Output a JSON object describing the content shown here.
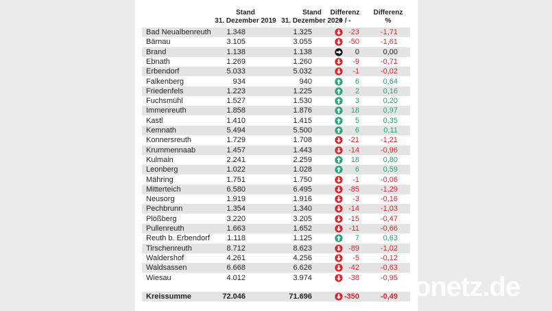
{
  "table": {
    "header": [
      [
        "Stand",
        "31. Dezember 2019"
      ],
      [
        "Stand",
        "31. Dezember 2020"
      ],
      [
        "Differenz",
        "+ / -"
      ],
      [
        "Differenz",
        "%"
      ]
    ],
    "rows": [
      [
        "Bad Neualbenreuth",
        "1.348",
        "1.325",
        "-23",
        "-1,71"
      ],
      [
        "Bärnau",
        "3.105",
        "3.055",
        "-50",
        "-1,61"
      ],
      [
        "Brand",
        "1.138",
        "1.138",
        "0",
        "0,00"
      ],
      [
        "Ebnath",
        "1.269",
        "1.260",
        "-9",
        "-0,71"
      ],
      [
        "Erbendorf",
        "5.033",
        "5.032",
        "-1",
        "-0,02"
      ],
      [
        "Falkenberg",
        "934",
        "940",
        "6",
        "0,64"
      ],
      [
        "Friedenfels",
        "1.223",
        "1.225",
        "2",
        "0,16"
      ],
      [
        "Fuchsmühl",
        "1.527",
        "1.530",
        "3",
        "0,20"
      ],
      [
        "Immenreuth",
        "1.858",
        "1.876",
        "18",
        "0,97"
      ],
      [
        "Kastl",
        "1.410",
        "1.415",
        "5",
        "0,35"
      ],
      [
        "Kemnath",
        "5.494",
        "5.500",
        "6",
        "0,11"
      ],
      [
        "Konnersreuth",
        "1.729",
        "1.708",
        "-21",
        "-1,21"
      ],
      [
        "Krummennaab",
        "1.457",
        "1.443",
        "-14",
        "-0,96"
      ],
      [
        "Kulmain",
        "2.241",
        "2.259",
        "18",
        "0,80"
      ],
      [
        "Leonberg",
        "1.022",
        "1.028",
        "6",
        "0,59"
      ],
      [
        "Mähring",
        "1.751",
        "1.750",
        "-1",
        "-0,06"
      ],
      [
        "Mitterteich",
        "6.580",
        "6.495",
        "-85",
        "-1,29"
      ],
      [
        "Neusorg",
        "1.919",
        "1.916",
        "-3",
        "-0,16"
      ],
      [
        "Pechbrunn",
        "1.354",
        "1.340",
        "-14",
        "-1,03"
      ],
      [
        "Plößberg",
        "3.220",
        "3.205",
        "-15",
        "-0,47"
      ],
      [
        "Pullenreuth",
        "1.663",
        "1.652",
        "-11",
        "-0,66"
      ],
      [
        "Reuth b. Erbendorf",
        "1.118",
        "1.125",
        "7",
        "0,63"
      ],
      [
        "Tirschenreuth",
        "8.712",
        "8.623",
        "-89",
        "-1,02"
      ],
      [
        "Waldershof",
        "4.261",
        "4.256",
        "-5",
        "-0,12"
      ],
      [
        "Waldsassen",
        "6.668",
        "6.626",
        "-42",
        "-0,63"
      ],
      [
        "Wiesau",
        "4.012",
        "3.974",
        "-38",
        "-0,95"
      ]
    ],
    "total": [
      "Kreissumme",
      "72.046",
      "71.696",
      "-350",
      "-0,49"
    ]
  },
  "watermark": "onetz.de"
}
